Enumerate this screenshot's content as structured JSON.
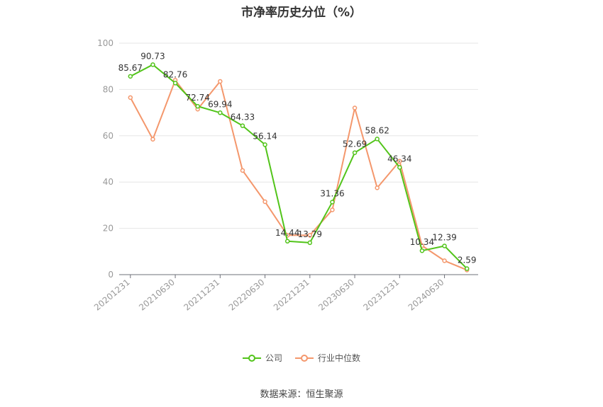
{
  "chart_data": {
    "type": "line",
    "title": "市净率历史分位（%）",
    "categories": [
      "20201231",
      "20210331",
      "20210630",
      "20210930",
      "20211231",
      "20220331",
      "20220630",
      "20220930",
      "20221231",
      "20230331",
      "20230630",
      "20230930",
      "20231231",
      "20240331",
      "20240630",
      "20240930"
    ],
    "tick_labels": [
      "20201231",
      "20210630",
      "20211231",
      "20220630",
      "20221231",
      "20230630",
      "20231231",
      "20240630"
    ],
    "series": [
      {
        "name": "公司",
        "color": "#52c41a",
        "values": [
          85.67,
          90.73,
          82.76,
          72.74,
          69.94,
          64.33,
          56.14,
          14.44,
          13.79,
          31.36,
          52.69,
          58.62,
          46.34,
          10.34,
          12.39,
          2.59
        ],
        "labels": [
          "85.67",
          "90.73",
          "82.76",
          "72.74",
          "69.94",
          "64.33",
          "56.14",
          "14.44",
          "13.79",
          "31.36",
          "52.69",
          "58.62",
          "46.34",
          "10.34",
          "12.39",
          "2.59"
        ]
      },
      {
        "name": "行业中位数",
        "color": "#f4976c",
        "values": [
          76.5,
          58.5,
          84.0,
          71.5,
          83.5,
          45.0,
          31.5,
          17.0,
          17.0,
          28.0,
          72.0,
          37.5,
          49.0,
          12.5,
          6.0,
          2.0
        ]
      }
    ],
    "yticks": [
      "0",
      "20",
      "40",
      "60",
      "80",
      "100"
    ],
    "ylim": [
      0,
      100
    ],
    "grid": true,
    "legend": "bottom"
  },
  "source": "数据来源：恒生聚源"
}
